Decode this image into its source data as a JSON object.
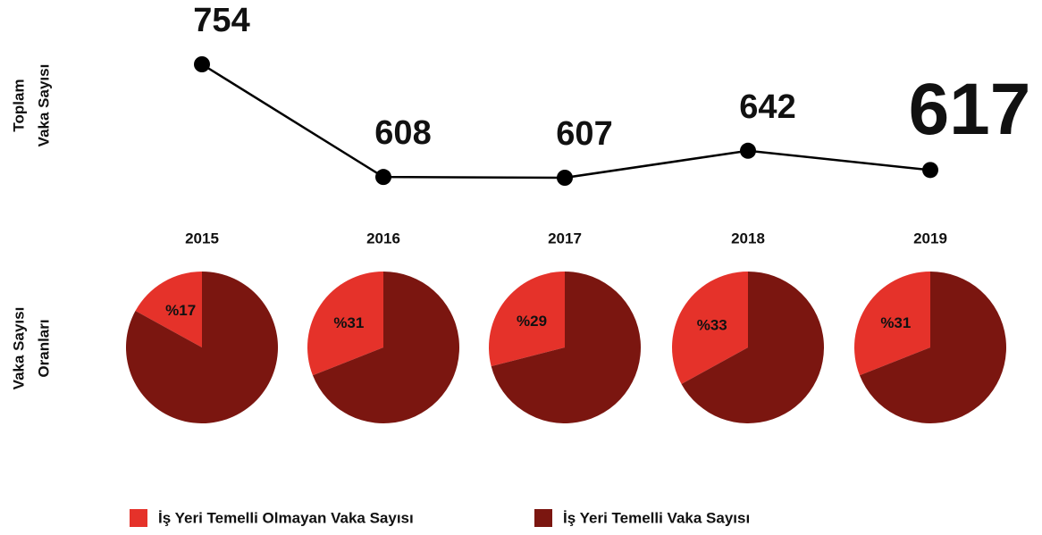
{
  "chart_data": [
    {
      "type": "line",
      "ylabel": [
        "Toplam",
        "Vaka Sayısı"
      ],
      "categories": [
        "2015",
        "2016",
        "2017",
        "2018",
        "2019"
      ],
      "values": [
        754,
        608,
        607,
        642,
        617
      ],
      "color": "#000000"
    },
    {
      "type": "pie",
      "ylabel": [
        "Vaka Sayısı",
        "Oranları"
      ],
      "series": [
        {
          "name": "İş Yeri Temelli Olmayan Vaka Sayısı",
          "color": "#e5322a",
          "values": [
            17,
            31,
            29,
            33,
            31
          ],
          "value_labels": [
            "%17",
            "%31",
            "%29",
            "%33",
            "%31"
          ]
        },
        {
          "name": "İş Yeri Temelli Vaka Sayısı",
          "color": "#7b1610",
          "values": [
            83,
            69,
            71,
            67,
            69
          ]
        }
      ]
    }
  ]
}
